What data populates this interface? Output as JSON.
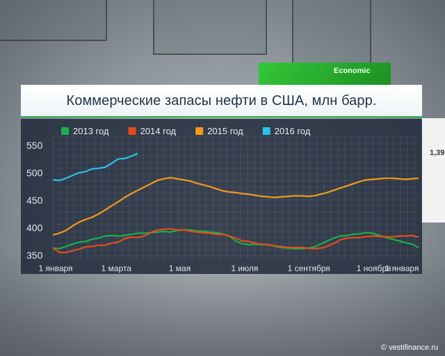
{
  "watermark": "© vestifinance.ru",
  "background": {
    "economic_sign": "Economic",
    "right_panel_number": "1,39"
  },
  "chart_data": {
    "type": "line",
    "title": "Коммерческие запасы нефти в США, млн барр.",
    "xlabel": "",
    "ylabel": "",
    "ylim": [
      345,
      560
    ],
    "yticks": [
      350,
      400,
      450,
      500,
      550
    ],
    "x_domain": [
      0,
      49
    ],
    "x_tick_labels": [
      {
        "label": "1 января",
        "x": 0
      },
      {
        "label": "1 марта",
        "x": 8.5
      },
      {
        "label": "1 мая",
        "x": 17
      },
      {
        "label": "1 июля",
        "x": 25.7
      },
      {
        "label": "1 сентября",
        "x": 34.3
      },
      {
        "label": "1 ноября",
        "x": 43
      },
      {
        "label": "1 января",
        "x": 51.5
      }
    ],
    "grid": true,
    "legend_position": "top-left",
    "series": [
      {
        "name": "2013 год",
        "color": "#18b04a",
        "values": [
          363,
          362,
          366,
          370,
          374,
          375,
          379,
          381,
          385,
          386,
          385,
          386,
          388,
          390,
          390,
          391,
          392,
          393,
          392,
          395,
          396,
          396,
          394,
          394,
          392,
          391,
          389,
          385,
          376,
          371,
          369,
          370,
          369,
          369,
          366,
          364,
          363,
          362,
          362,
          363,
          365,
          370,
          376,
          381,
          385,
          386,
          388,
          389,
          391,
          390,
          386,
          382,
          379,
          376,
          373,
          370,
          364
        ]
      },
      {
        "name": "2014 год",
        "color": "#e84a1a",
        "values": [
          363,
          355,
          355,
          358,
          361,
          365,
          366,
          368,
          368,
          372,
          374,
          380,
          383,
          382,
          385,
          391,
          396,
          397,
          398,
          396,
          396,
          394,
          392,
          391,
          390,
          388,
          388,
          385,
          381,
          376,
          375,
          372,
          370,
          369,
          367,
          366,
          364,
          364,
          364,
          363,
          362,
          363,
          366,
          371,
          378,
          381,
          382,
          382,
          384,
          385,
          384,
          384,
          383,
          385,
          385,
          386,
          383
        ]
      },
      {
        "name": "2015 год",
        "color": "#f59a1c",
        "values": [
          387,
          390,
          395,
          403,
          410,
          415,
          419,
          425,
          432,
          440,
          447,
          455,
          462,
          468,
          474,
          480,
          486,
          489,
          491,
          489,
          487,
          485,
          481,
          478,
          475,
          471,
          467,
          465,
          464,
          462,
          461,
          459,
          457,
          456,
          455,
          456,
          457,
          458,
          458,
          457,
          458,
          461,
          464,
          468,
          472,
          476,
          480,
          484,
          487,
          488,
          489,
          490,
          490,
          489,
          488,
          489,
          490
        ]
      },
      {
        "name": "2016 год",
        "color": "#2ec0e6",
        "values": [
          487,
          486,
          490,
          495,
          500,
          502,
          507,
          508,
          510,
          517,
          525,
          526,
          530,
          535
        ]
      }
    ]
  }
}
